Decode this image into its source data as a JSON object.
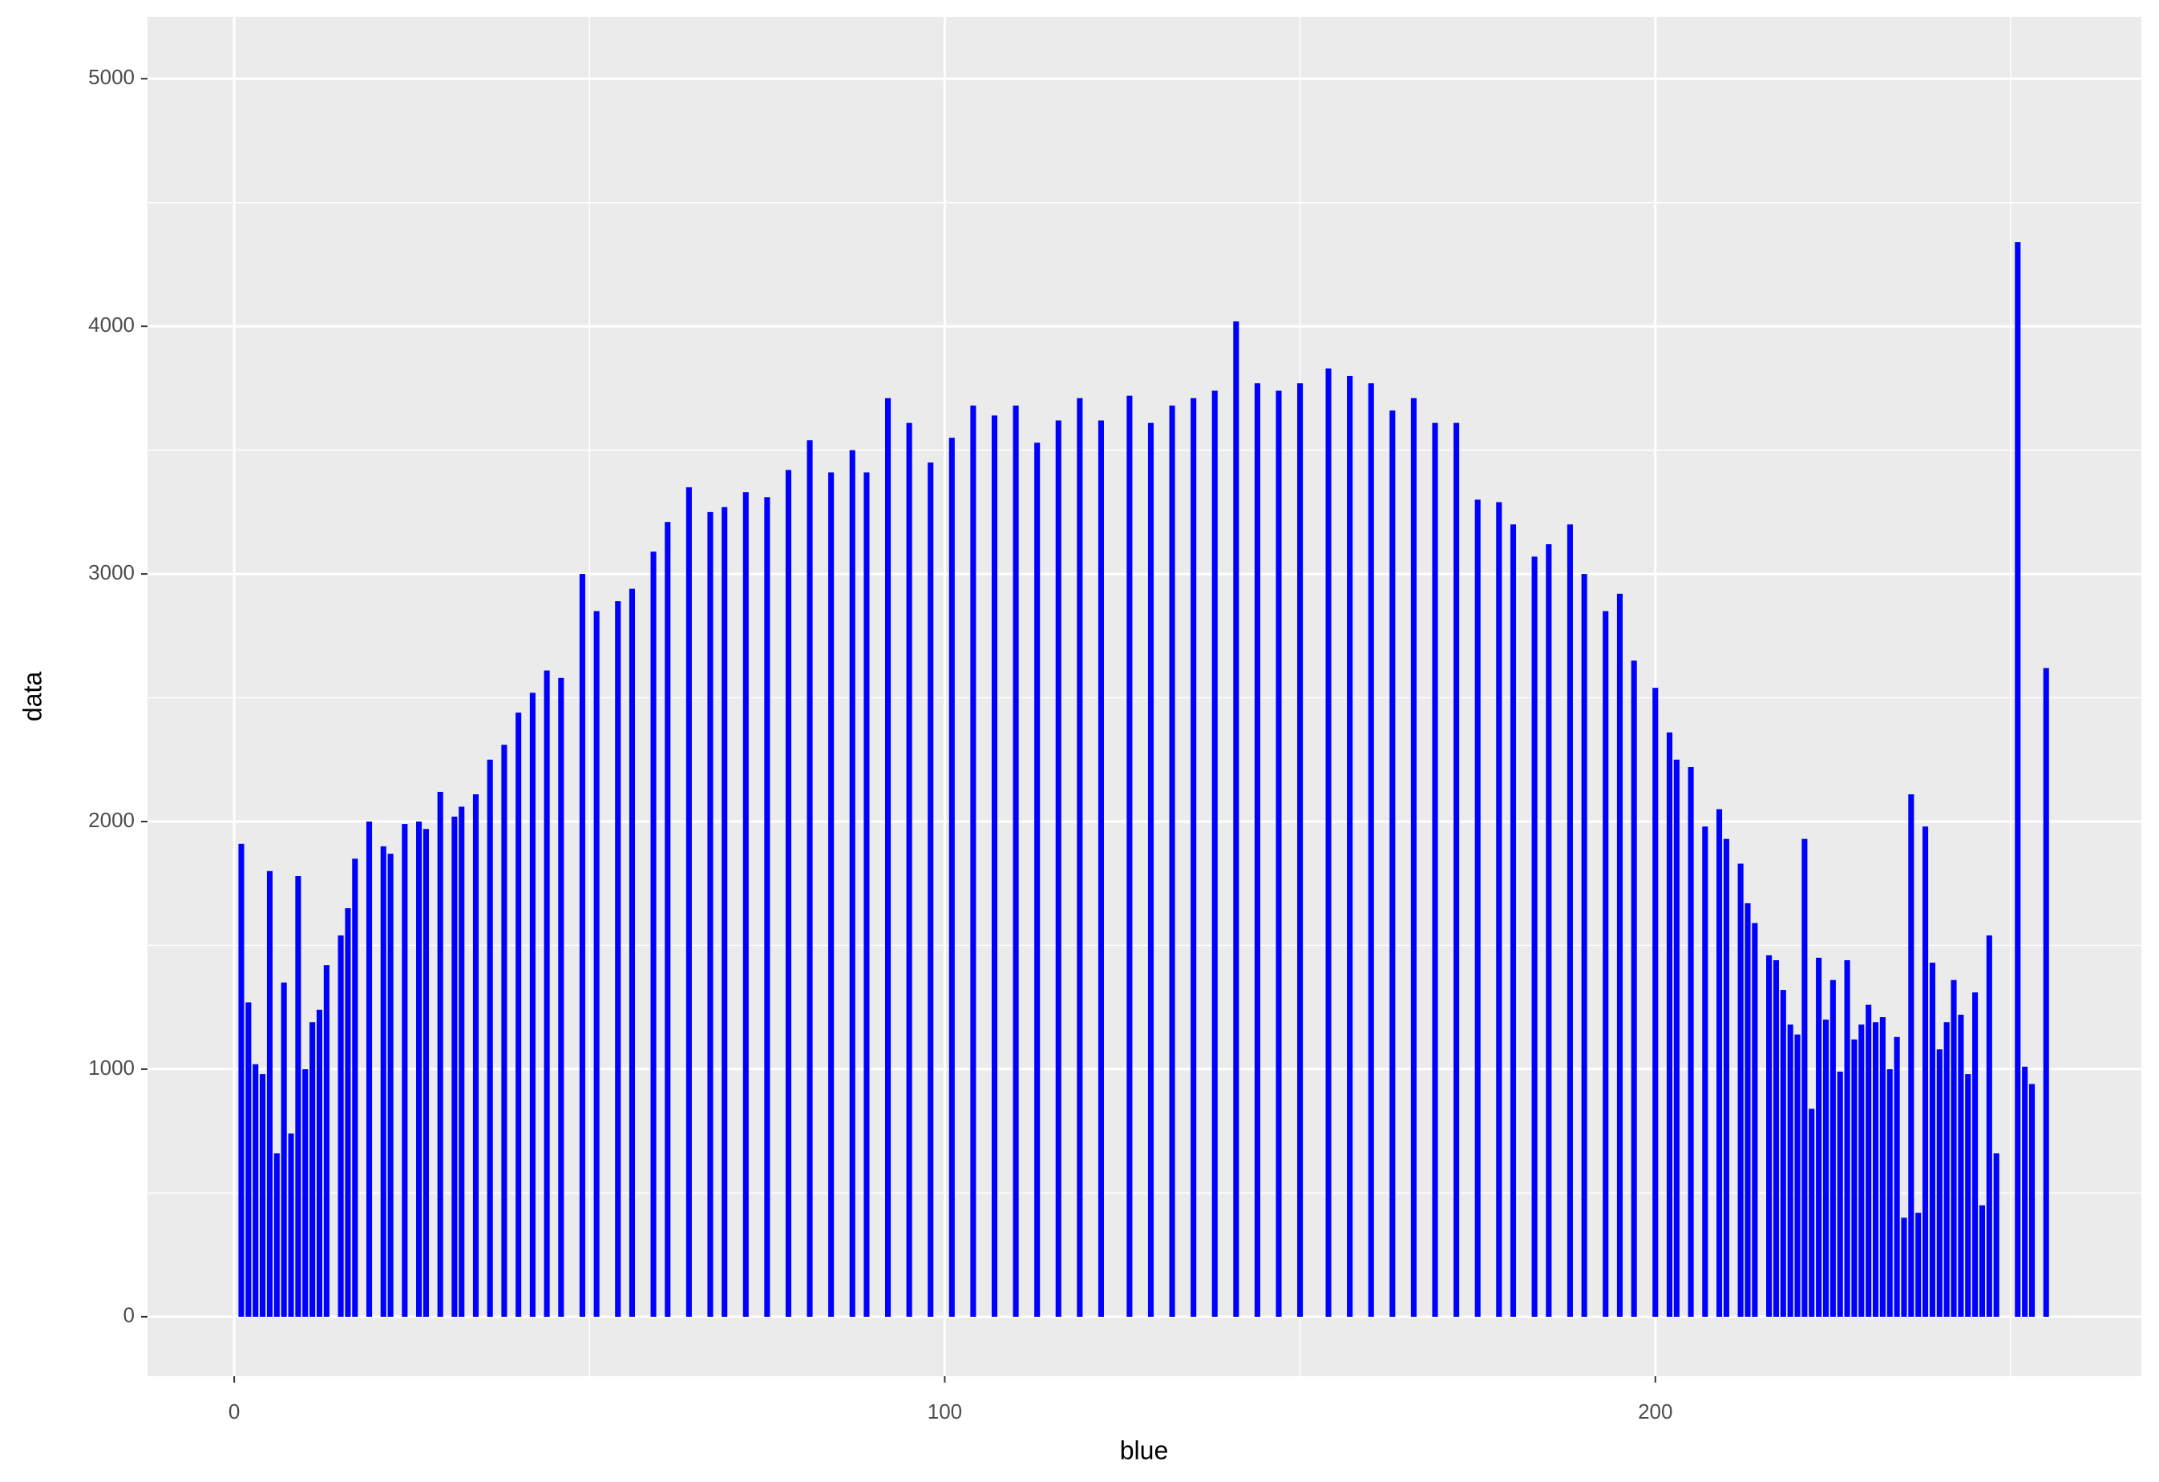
{
  "chart_data": {
    "type": "bar",
    "x_label": "blue",
    "y_label": "data",
    "color": "blue",
    "grid": true,
    "x": [
      1,
      2,
      3,
      4,
      5,
      6,
      7,
      8,
      9,
      10,
      11,
      12,
      13,
      15,
      16,
      17,
      19,
      21,
      22,
      24,
      26,
      27,
      29,
      31,
      32,
      34,
      36,
      38,
      40,
      42,
      44,
      46,
      49,
      51,
      54,
      56,
      59,
      61,
      64,
      67,
      69,
      72,
      75,
      78,
      81,
      84,
      87,
      89,
      92,
      95,
      98,
      101,
      104,
      107,
      110,
      113,
      116,
      119,
      122,
      126,
      129,
      132,
      135,
      138,
      141,
      144,
      147,
      150,
      154,
      157,
      160,
      163,
      166,
      169,
      172,
      175,
      178,
      180,
      183,
      185,
      188,
      190,
      193,
      195,
      197,
      200,
      202,
      203,
      205,
      207,
      209,
      210,
      212,
      213,
      214,
      216,
      217,
      218,
      219,
      220,
      221,
      222,
      223,
      224,
      225,
      226,
      227,
      228,
      229,
      230,
      231,
      232,
      233,
      234,
      235,
      236,
      237,
      238,
      239,
      240,
      241,
      242,
      243,
      244,
      245,
      246,
      247,
      248,
      251,
      252,
      253,
      255
    ],
    "values": [
      1910,
      1270,
      1020,
      980,
      1800,
      660,
      1350,
      740,
      1780,
      1000,
      1190,
      1240,
      1420,
      1540,
      1650,
      1850,
      2000,
      1900,
      1870,
      1990,
      2000,
      1970,
      2120,
      2020,
      2060,
      2110,
      2250,
      2310,
      2440,
      2520,
      2610,
      2580,
      3000,
      2850,
      2890,
      2940,
      3090,
      3210,
      3350,
      3250,
      3270,
      3330,
      3310,
      3420,
      3540,
      3410,
      3500,
      3410,
      3710,
      3610,
      3450,
      3550,
      3680,
      3640,
      3680,
      3530,
      3620,
      3710,
      3620,
      3720,
      3610,
      3680,
      3710,
      3740,
      4020,
      3770,
      3740,
      3770,
      3830,
      3800,
      3770,
      3660,
      3710,
      3610,
      3610,
      3300,
      3290,
      3200,
      3070,
      3120,
      3200,
      3000,
      2850,
      2920,
      2650,
      2540,
      2360,
      2250,
      2220,
      1980,
      2050,
      1930,
      1830,
      1670,
      1590,
      1460,
      1440,
      1320,
      1180,
      1140,
      1930,
      840,
      1450,
      1200,
      1360,
      990,
      1440,
      1120,
      1180,
      1260,
      1190,
      1210,
      1000,
      1130,
      400,
      2110,
      420,
      1980,
      1430,
      1080,
      1190,
      1360,
      1220,
      980,
      1310,
      450,
      1540,
      660,
      4340,
      1010,
      940,
      2620
    ],
    "xlim": [
      -12.2,
      268.4
    ],
    "ylim": [
      -240,
      5250
    ],
    "xticks": [
      0,
      100,
      200
    ],
    "yticks": [
      0,
      1000,
      2000,
      3000,
      4000,
      5000
    ],
    "x_minor_grid": [
      50,
      150,
      250
    ],
    "y_minor_grid": [
      500,
      1500,
      2500,
      3500,
      4500
    ]
  }
}
